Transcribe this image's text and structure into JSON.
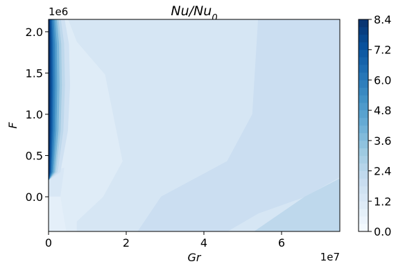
{
  "chart_data": {
    "type": "contour",
    "title": "Nu/Nu",
    "title_sub": "0",
    "xlabel": "Gr",
    "ylabel": "F",
    "x_multiplier": "1e7",
    "y_multiplier": "1e6",
    "xlim": [
      0,
      7.5
    ],
    "ylim": [
      -0.42,
      2.15
    ],
    "x_ticks": [
      {
        "v": 0,
        "label": "0"
      },
      {
        "v": 2,
        "label": "2"
      },
      {
        "v": 4,
        "label": "4"
      },
      {
        "v": 6,
        "label": "6"
      }
    ],
    "y_ticks": [
      {
        "v": 0.0,
        "label": "0.0"
      },
      {
        "v": 0.5,
        "label": "0.5"
      },
      {
        "v": 1.0,
        "label": "1.0"
      },
      {
        "v": 1.5,
        "label": "1.5"
      },
      {
        "v": 2.0,
        "label": "2.0"
      }
    ],
    "colorbar": {
      "min": 0.0,
      "max": 8.4,
      "levels": 28,
      "colormap": "Blues",
      "tick_labels": [
        "0.0",
        "1.2",
        "2.4",
        "3.6",
        "4.8",
        "6.0",
        "7.2",
        "8.4"
      ]
    },
    "regions_note": "Nu/Nu0 ~0.6-1.2 in large central region, ~1.2-1.8 at high Gr, up to ~8.4 at low Gr / high F",
    "regions": [
      {
        "level": 1.4,
        "poly": [
          [
            0.3,
            2.15
          ],
          [
            7.5,
            2.15
          ],
          [
            7.5,
            -0.42
          ],
          [
            0.3,
            -0.42
          ]
        ]
      },
      {
        "level": 1.9,
        "poly": [
          [
            5.4,
            2.15
          ],
          [
            7.5,
            2.15
          ],
          [
            7.5,
            0.24
          ],
          [
            6.6,
            0.0
          ],
          [
            5.4,
            -0.2
          ],
          [
            4.6,
            -0.42
          ],
          [
            2.3,
            -0.42
          ],
          [
            2.9,
            0.0
          ],
          [
            4.6,
            0.43
          ],
          [
            5.25,
            1.0
          ]
        ]
      },
      {
        "level": 2.3,
        "poly": [
          [
            7.5,
            0.22
          ],
          [
            7.5,
            -0.42
          ],
          [
            5.3,
            -0.42
          ],
          [
            6.6,
            0.0
          ]
        ]
      },
      {
        "level": 1.0,
        "poly": [
          [
            0.5,
            2.15
          ],
          [
            0.72,
            1.88
          ],
          [
            1.45,
            1.48
          ],
          [
            1.9,
            0.43
          ],
          [
            1.4,
            0.0
          ],
          [
            0.72,
            -0.3
          ],
          [
            0.72,
            -0.42
          ],
          [
            0.3,
            -0.42
          ],
          [
            0.3,
            2.15
          ]
        ]
      },
      {
        "level": 1.3,
        "poly": [
          [
            0.0,
            0.3
          ],
          [
            0.4,
            0.35
          ],
          [
            0.3,
            0.0
          ],
          [
            0.0,
            -0.05
          ]
        ]
      },
      {
        "level": 0.8,
        "poly": [
          [
            0.0,
            0.0
          ],
          [
            0.3,
            0.0
          ],
          [
            0.45,
            -0.42
          ],
          [
            0.0,
            -0.42
          ]
        ]
      }
    ],
    "left_band": [
      {
        "level": 8.4,
        "xr": 0.04
      },
      {
        "level": 7.5,
        "xr": 0.08
      },
      {
        "level": 6.6,
        "xr": 0.12
      },
      {
        "level": 5.7,
        "xr": 0.17
      },
      {
        "level": 4.8,
        "xr": 0.22
      },
      {
        "level": 3.9,
        "xr": 0.28
      },
      {
        "level": 3.0,
        "xr": 0.34
      },
      {
        "level": 2.3,
        "xr": 0.42
      },
      {
        "level": 1.7,
        "xr": 0.55
      }
    ]
  }
}
